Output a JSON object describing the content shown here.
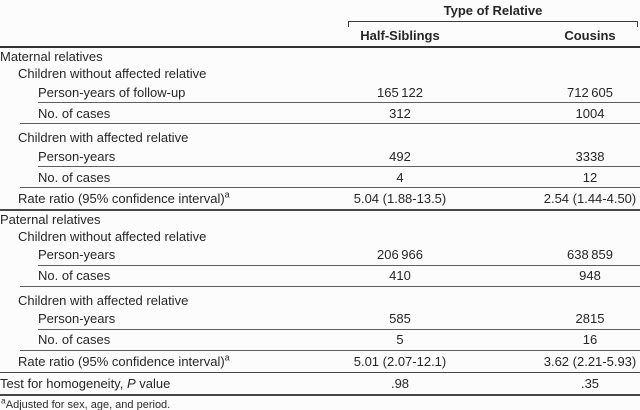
{
  "header": {
    "spanner_label": "Type of Relative",
    "columns": [
      "Half-Siblings",
      "Cousins"
    ]
  },
  "rows": [
    {
      "label": "Maternal relatives"
    },
    {
      "label": "Children without affected relative"
    },
    {
      "label": "Person-years of follow-up",
      "half_siblings": "165 122",
      "cousins": "712 605"
    },
    {
      "label": "No. of cases",
      "half_siblings": "312",
      "cousins": "1004"
    },
    {
      "label": "Children with affected relative"
    },
    {
      "label": "Person-years",
      "half_siblings": "492",
      "cousins": "3338"
    },
    {
      "label": "No. of cases",
      "half_siblings": "4",
      "cousins": "12"
    },
    {
      "label": "Rate ratio (95% confidence interval)",
      "footnote_marker": "a",
      "half_siblings": "5.04 (1.88-13.5)",
      "cousins": "2.54 (1.44-4.50)"
    },
    {
      "label": "Paternal relatives"
    },
    {
      "label": "Children without affected relative"
    },
    {
      "label": "Person-years",
      "half_siblings": "206 966",
      "cousins": "638 859"
    },
    {
      "label": "No. of cases",
      "half_siblings": "410",
      "cousins": "948"
    },
    {
      "label": "Children with affected relative"
    },
    {
      "label": "Person-years",
      "half_siblings": "585",
      "cousins": "2815"
    },
    {
      "label": "No. of cases",
      "half_siblings": "5",
      "cousins": "16"
    },
    {
      "label": "Rate ratio (95% confidence interval)",
      "footnote_marker": "a",
      "half_siblings": "5.01 (2.07-12.1)",
      "cousins": "3.62 (2.21-5.93)"
    },
    {
      "label_pre": "Test for homogeneity, ",
      "label_italic": "P",
      "label_post": " value",
      "half_siblings": ".98",
      "cousins": ".35"
    }
  ],
  "footnote": {
    "marker": "a",
    "text": "Adjusted for sex, age, and period."
  },
  "colors": {
    "text": "#262626",
    "rule": "#5f5f5f",
    "background": "#fcfcfc"
  }
}
